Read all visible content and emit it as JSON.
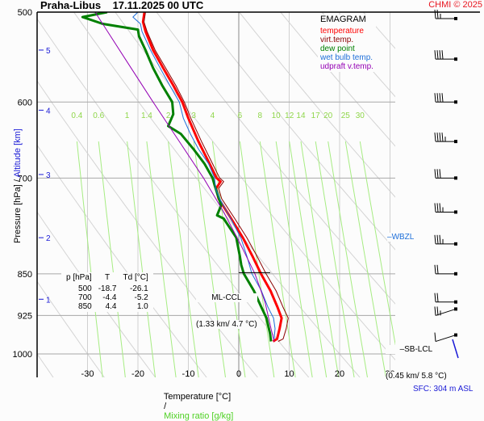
{
  "header": {
    "title": "Praha-Libus    17.11.2025 00 UTC",
    "copyright": "CHMI © 2025"
  },
  "axes": {
    "ylabel_pressure": "Pressure [hPa]",
    "ylabel_sep": "/",
    "ylabel_altitude": "Altitude [km]",
    "xlabel_temp": "Temperature [°C]",
    "xlabel_sep": "/",
    "xlabel_mix": "Mixing ratio [g/kg]"
  },
  "surface": "SFC: 304 m ASL",
  "legend": {
    "title": "EMAGRAM",
    "items": [
      {
        "label": "temperature",
        "color": "#ff0000"
      },
      {
        "label": "virt.temp.",
        "color": "#8b0000"
      },
      {
        "label": "dew point",
        "color": "#008000"
      },
      {
        "label": "wet bulb temp.",
        "color": "#1e6fd9"
      },
      {
        "label": "udpraft v.temp.",
        "color": "#9400b4"
      }
    ]
  },
  "table": {
    "headers": [
      "p [hPa]",
      "T",
      "Td [°C]"
    ],
    "rows": [
      [
        "500",
        "-18.7",
        "-26.1"
      ],
      [
        "700",
        "-4.4",
        "-5.2"
      ],
      [
        "850",
        "4.4",
        "1.0"
      ]
    ]
  },
  "annotations": {
    "ml_ccl": {
      "label": "ML-CCL",
      "detail": "(1.33 km/ 4.7 °C)",
      "p": 850
    },
    "sb_lcl": {
      "label": "SB-LCL",
      "detail": "(0.45 km/ 5.8 °C)",
      "p": 958
    },
    "wbzl": {
      "label": "WBZL",
      "p": 800
    }
  },
  "chart_data": {
    "type": "line",
    "title": "Praha-Libus 17.11.2025 00 UTC — EMAGRAM",
    "xlabel": "Temperature [°C] / Mixing ratio [g/kg]",
    "ylabel": "Pressure [hPa] / Altitude [km]",
    "xlim": [
      -40,
      40
    ],
    "ylim": [
      1000,
      500
    ],
    "y_scale": "log",
    "grid": true,
    "legend_position": "top-right",
    "x_ticks": [
      -30,
      -20,
      -10,
      0,
      10,
      20,
      30
    ],
    "pressure_ticks": [
      500,
      600,
      700,
      850,
      925,
      1000
    ],
    "altitude_ticks": [
      {
        "km": 5,
        "p": 540
      },
      {
        "km": 4,
        "p": 610
      },
      {
        "km": 3,
        "p": 695
      },
      {
        "km": 2,
        "p": 790
      },
      {
        "km": 1,
        "p": 895
      }
    ],
    "mixing_ratio_labels": [
      "0.4",
      "0.6",
      "1",
      "1.4",
      "2",
      "3",
      "4",
      "6",
      "8",
      "10",
      "12",
      "14",
      "17",
      "20",
      "25",
      "30"
    ],
    "mixing_ratio_values": [
      0.4,
      0.6,
      1,
      1.4,
      2,
      3,
      4,
      6,
      8,
      10,
      12,
      14,
      17,
      20,
      25,
      30
    ],
    "series": [
      {
        "name": "temperature",
        "color": "#ff0000",
        "points": [
          [
            500,
            -18.7
          ],
          [
            510,
            -19.0
          ],
          [
            520,
            -18.5
          ],
          [
            540,
            -17.0
          ],
          [
            560,
            -15.0
          ],
          [
            580,
            -13.0
          ],
          [
            600,
            -11.2
          ],
          [
            620,
            -10.0
          ],
          [
            650,
            -8.0
          ],
          [
            680,
            -5.8
          ],
          [
            700,
            -4.4
          ],
          [
            705,
            -3.6
          ],
          [
            715,
            -4.5
          ],
          [
            730,
            -4.0
          ],
          [
            760,
            -1.5
          ],
          [
            790,
            0.8
          ],
          [
            820,
            2.7
          ],
          [
            850,
            4.4
          ],
          [
            880,
            6.3
          ],
          [
            910,
            7.7
          ],
          [
            930,
            8.5
          ],
          [
            950,
            8.1
          ],
          [
            970,
            7.6
          ],
          [
            975,
            6.8
          ]
        ]
      },
      {
        "name": "virt.temp.",
        "color": "#8b0000",
        "points": [
          [
            500,
            -18.5
          ],
          [
            510,
            -18.8
          ],
          [
            520,
            -18.2
          ],
          [
            540,
            -16.6
          ],
          [
            560,
            -14.5
          ],
          [
            580,
            -12.5
          ],
          [
            600,
            -10.8
          ],
          [
            620,
            -9.5
          ],
          [
            650,
            -7.4
          ],
          [
            680,
            -5.2
          ],
          [
            700,
            -3.8
          ],
          [
            705,
            -3.0
          ],
          [
            715,
            -4.0
          ],
          [
            730,
            -3.4
          ],
          [
            760,
            -0.8
          ],
          [
            790,
            1.6
          ],
          [
            820,
            3.6
          ],
          [
            850,
            5.4
          ],
          [
            880,
            7.4
          ],
          [
            910,
            8.8
          ],
          [
            930,
            9.8
          ],
          [
            950,
            9.4
          ],
          [
            970,
            8.8
          ],
          [
            975,
            7.8
          ]
        ]
      },
      {
        "name": "dew point",
        "color": "#008000",
        "points": [
          [
            500,
            -26.1
          ],
          [
            505,
            -31.0
          ],
          [
            512,
            -27.0
          ],
          [
            518,
            -20.0
          ],
          [
            525,
            -19.8
          ],
          [
            540,
            -18.5
          ],
          [
            560,
            -17.0
          ],
          [
            580,
            -15.2
          ],
          [
            600,
            -13.2
          ],
          [
            615,
            -13.0
          ],
          [
            630,
            -14.0
          ],
          [
            640,
            -11.5
          ],
          [
            660,
            -9.0
          ],
          [
            680,
            -6.8
          ],
          [
            700,
            -5.2
          ],
          [
            710,
            -4.8
          ],
          [
            740,
            -3.5
          ],
          [
            755,
            -4.3
          ],
          [
            760,
            -3.0
          ],
          [
            790,
            -0.5
          ],
          [
            820,
            0.2
          ],
          [
            835,
            0.5
          ],
          [
            850,
            1.0
          ],
          [
            880,
            3.0
          ],
          [
            910,
            4.5
          ],
          [
            930,
            5.5
          ],
          [
            960,
            6.2
          ],
          [
            975,
            6.4
          ]
        ]
      },
      {
        "name": "wet bulb temp.",
        "color": "#1e6fd9",
        "points": [
          [
            500,
            -20.0
          ],
          [
            505,
            -21.0
          ],
          [
            512,
            -19.5
          ],
          [
            520,
            -19.2
          ],
          [
            540,
            -17.5
          ],
          [
            560,
            -15.6
          ],
          [
            580,
            -13.7
          ],
          [
            600,
            -11.8
          ],
          [
            620,
            -11.0
          ],
          [
            640,
            -9.6
          ],
          [
            660,
            -8.0
          ],
          [
            680,
            -6.0
          ],
          [
            700,
            -4.8
          ],
          [
            715,
            -4.6
          ],
          [
            730,
            -3.8
          ],
          [
            760,
            -1.6
          ],
          [
            790,
            0.4
          ],
          [
            820,
            1.6
          ],
          [
            850,
            2.6
          ],
          [
            880,
            4.5
          ],
          [
            910,
            5.8
          ],
          [
            930,
            6.9
          ],
          [
            950,
            7.2
          ],
          [
            970,
            7.0
          ]
        ]
      },
      {
        "name": "udpraft v.temp.",
        "color": "#9400b4",
        "points": [
          [
            500,
            -28.5
          ],
          [
            550,
            -22.5
          ],
          [
            600,
            -17.0
          ],
          [
            650,
            -11.8
          ],
          [
            700,
            -7.0
          ],
          [
            750,
            -3.0
          ],
          [
            800,
            0.3
          ],
          [
            850,
            3.2
          ],
          [
            900,
            5.2
          ],
          [
            950,
            6.4
          ],
          [
            975,
            7.0
          ]
        ]
      }
    ],
    "wind_barbs": [
      {
        "p": 500,
        "speed_kt": 15
      },
      {
        "p": 550,
        "speed_kt": 40
      },
      {
        "p": 600,
        "speed_kt": 40
      },
      {
        "p": 650,
        "speed_kt": 35
      },
      {
        "p": 700,
        "speed_kt": 30
      },
      {
        "p": 750,
        "speed_kt": 25
      },
      {
        "p": 800,
        "speed_kt": 25
      },
      {
        "p": 850,
        "speed_kt": 20
      },
      {
        "p": 900,
        "speed_kt": 20
      },
      {
        "p": 925,
        "speed_kt": 15
      },
      {
        "p": 975,
        "speed_kt": 10
      }
    ]
  }
}
